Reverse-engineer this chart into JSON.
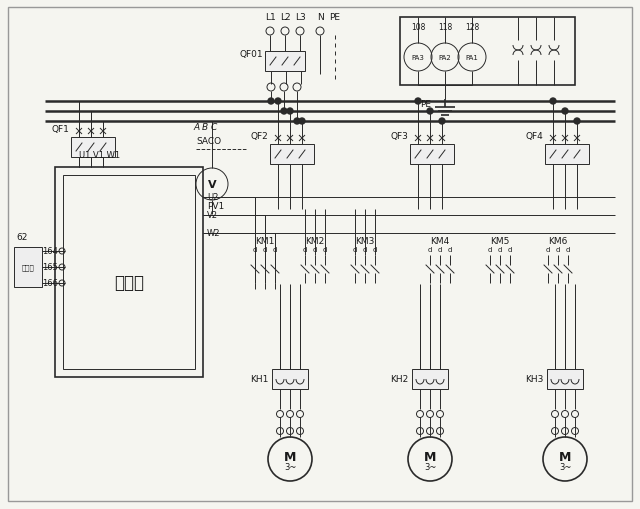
{
  "bg": "#f5f5f0",
  "lc": "#2a2a2a",
  "tc": "#1a1a1a",
  "lw_thin": 0.7,
  "lw_med": 1.2,
  "lw_thick": 1.8,
  "fig_w": 6.4,
  "fig_h": 5.1,
  "dpi": 100,
  "vfd_label": "变频器",
  "pa_labels": [
    "PA3",
    "PA2",
    "PA1"
  ],
  "pa_nums": [
    "108",
    "118",
    "128"
  ],
  "km_labels": [
    "KM1",
    "KM2",
    "KM3",
    "KM4",
    "KM5",
    "KM6"
  ],
  "kh_labels": [
    "KH1",
    "KH2",
    "KH3"
  ],
  "qf_labels": [
    "QF2",
    "QF3",
    "QF4"
  ]
}
